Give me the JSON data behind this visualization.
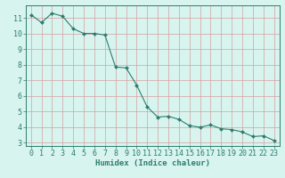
{
  "x": [
    0,
    1,
    2,
    3,
    4,
    5,
    6,
    7,
    8,
    9,
    10,
    11,
    12,
    13,
    14,
    15,
    16,
    17,
    18,
    19,
    20,
    21,
    22,
    23
  ],
  "y": [
    11.2,
    10.7,
    11.3,
    11.1,
    10.3,
    10.0,
    10.0,
    9.9,
    7.85,
    7.8,
    6.7,
    5.3,
    4.65,
    4.7,
    4.5,
    4.1,
    4.0,
    4.15,
    3.9,
    3.85,
    3.7,
    3.4,
    3.45,
    3.15
  ],
  "xlabel": "Humidex (Indice chaleur)",
  "ylim": [
    2.8,
    11.8
  ],
  "xlim": [
    -0.5,
    23.5
  ],
  "yticks": [
    3,
    4,
    5,
    6,
    7,
    8,
    9,
    10,
    11
  ],
  "xticks": [
    0,
    1,
    2,
    3,
    4,
    5,
    6,
    7,
    8,
    9,
    10,
    11,
    12,
    13,
    14,
    15,
    16,
    17,
    18,
    19,
    20,
    21,
    22,
    23
  ],
  "line_color": "#2d7d6f",
  "marker_color": "#2d7d6f",
  "bg_color": "#d8f4ef",
  "grid_color": "#b0d8d2",
  "axis_color": "#2d7d6f",
  "tick_color": "#2d7d6f",
  "label_color": "#2d7d6f",
  "xlabel_fontsize": 6.5,
  "tick_fontsize": 6.0
}
